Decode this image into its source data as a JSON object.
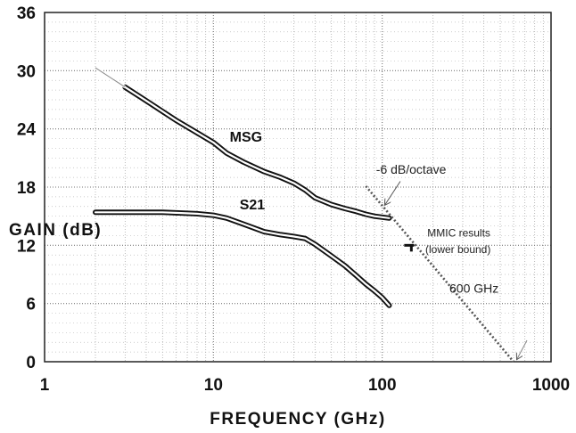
{
  "chart_data": {
    "type": "line",
    "title": "",
    "xlabel": "FREQUENCY (GHz)",
    "ylabel": "GAIN (dB)",
    "x_scale": "log",
    "xlim": [
      1,
      1000
    ],
    "ylim": [
      0,
      36
    ],
    "x_ticks": [
      "1",
      "10",
      "100",
      "1000"
    ],
    "y_ticks": [
      "0",
      "6",
      "12",
      "18",
      "24",
      "30",
      "36"
    ],
    "grid": true,
    "series": [
      {
        "name": "MSG",
        "style": "measured",
        "x": [
          3,
          4,
          5,
          6,
          8,
          10,
          12,
          15,
          20,
          25,
          30,
          35,
          40,
          50,
          60,
          70,
          80,
          90,
          100,
          110
        ],
        "y": [
          28.3,
          26.9,
          25.8,
          24.9,
          23.6,
          22.6,
          21.5,
          20.6,
          19.6,
          19.0,
          18.4,
          17.7,
          16.9,
          16.2,
          15.8,
          15.5,
          15.2,
          15.0,
          14.9,
          14.8
        ]
      },
      {
        "name": "S21",
        "style": "measured",
        "x": [
          2,
          3,
          4,
          5,
          6,
          8,
          10,
          12,
          15,
          20,
          25,
          30,
          35,
          40,
          50,
          60,
          70,
          80,
          90,
          100,
          110
        ],
        "y": [
          15.4,
          15.4,
          15.4,
          15.4,
          15.35,
          15.25,
          15.1,
          14.8,
          14.2,
          13.4,
          13.1,
          12.9,
          12.7,
          12.1,
          10.9,
          9.9,
          8.9,
          8.0,
          7.3,
          6.6,
          5.8
        ]
      },
      {
        "name": "",
        "style": "extrapolation",
        "x": [
          2,
          3
        ],
        "y": [
          30.3,
          28.3
        ]
      },
      {
        "name": "",
        "style": "extrapolation",
        "x": [
          80,
          600
        ],
        "y": [
          18.1,
          0
        ]
      }
    ],
    "points": [
      {
        "x": 147,
        "y": 12.0
      }
    ],
    "annotations": [
      {
        "text": "-6 dB/octave"
      },
      {
        "text": "MMIC results"
      },
      {
        "text": "(lower bound)"
      },
      {
        "text": "600 GHz"
      }
    ]
  }
}
